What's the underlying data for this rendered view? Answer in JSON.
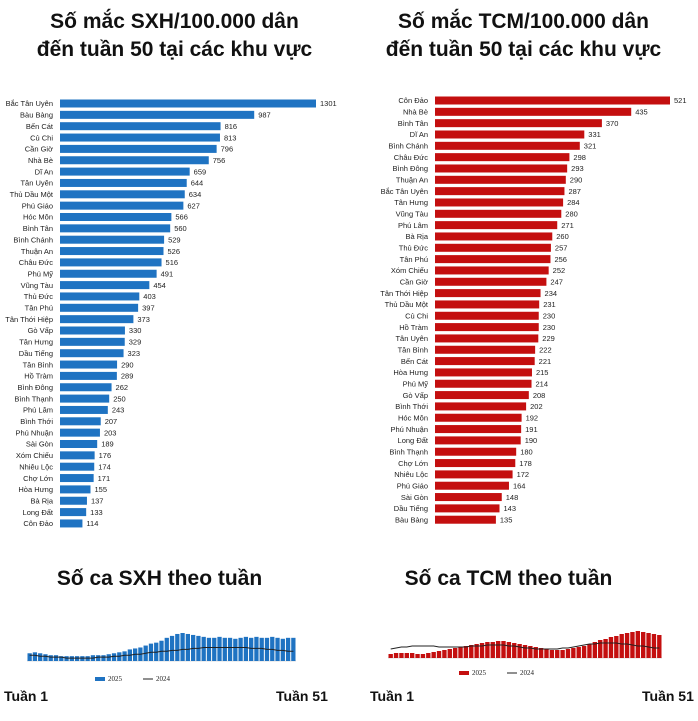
{
  "sxh": {
    "title_line1": "Số mắc SXH/100.000 dân",
    "title_line2": "đến tuần 50 tại các khu vực",
    "weekly_title": "Số ca SXH theo tuần",
    "legend_current": "2025",
    "legend_prev": "2024",
    "week_start": "Tuần 1",
    "week_end": "Tuần 51",
    "bar_color": "#1f73c2",
    "line_color": "#222222"
  },
  "tcm": {
    "title_line1": "Số mắc TCM/100.000 dân",
    "title_line2": "đến tuần 50 tại các khu vực",
    "weekly_title": "Số ca TCM theo tuần",
    "legend_current": "2025",
    "legend_prev": "2024",
    "week_start": "Tuần 1",
    "week_end": "Tuần 51",
    "bar_color": "#c40f0f",
    "line_color": "#222222"
  },
  "chart_data": [
    {
      "type": "bar",
      "orientation": "horizontal",
      "title": "Số mắc SXH/100.000 dân đến tuần 50 tại các khu vực",
      "categories": [
        "Bắc Tân Uyên",
        "Bàu Bàng",
        "Bến Cát",
        "Củ Chi",
        "Cần Giờ",
        "Nhà Bè",
        "Dĩ An",
        "Tân Uyên",
        "Thủ Dầu Một",
        "Phú Giáo",
        "Hóc Môn",
        "Bình Tân",
        "Bình Chánh",
        "Thuận An",
        "Châu Đức",
        "Phú Mỹ",
        "Vũng Tàu",
        "Thủ Đức",
        "Tân Phú",
        "Tân Thới Hiệp",
        "Gò Vấp",
        "Tân Hưng",
        "Dầu Tiếng",
        "Tân Bình",
        "Hồ Tràm",
        "Bình Đông",
        "Bình Thạnh",
        "Phú Lâm",
        "Bình Thới",
        "Phú Nhuận",
        "Sài Gòn",
        "Xóm Chiếu",
        "Nhiêu Lộc",
        "Chợ Lớn",
        "Hòa Hưng",
        "Bà Rịa",
        "Long Đất",
        "Côn Đảo"
      ],
      "values": [
        1301,
        987,
        816,
        813,
        796,
        756,
        659,
        644,
        634,
        627,
        566,
        560,
        529,
        526,
        516,
        491,
        454,
        403,
        397,
        373,
        330,
        329,
        323,
        290,
        289,
        262,
        250,
        243,
        207,
        203,
        189,
        176,
        174,
        171,
        155,
        137,
        133,
        114
      ],
      "xlim": [
        0,
        1301
      ],
      "color": "#1f73c2"
    },
    {
      "type": "bar",
      "orientation": "horizontal",
      "title": "Số mắc TCM/100.000 dân đến tuần 50 tại các khu vực",
      "categories": [
        "Côn Đảo",
        "Nhà Bè",
        "Bình Tân",
        "Dĩ An",
        "Bình Chánh",
        "Châu Đức",
        "Bình Đông",
        "Thuận An",
        "Bắc Tân Uyên",
        "Tân Hưng",
        "Vũng Tàu",
        "Phú Lâm",
        "Bà Rịa",
        "Thủ Đức",
        "Tân Phú",
        "Xóm Chiếu",
        "Cần Giờ",
        "Tân Thới Hiệp",
        "Thủ Dầu Một",
        "Củ Chi",
        "Hồ Tràm",
        "Tân Uyên",
        "Tân Bình",
        "Bến Cát",
        "Hòa Hưng",
        "Phú Mỹ",
        "Gò Vấp",
        "Bình Thới",
        "Hóc Môn",
        "Phú Nhuận",
        "Long Đất",
        "Bình Thạnh",
        "Chợ Lớn",
        "Nhiêu Lộc",
        "Phú Giáo",
        "Sài Gòn",
        "Dầu Tiếng",
        "Bàu Bàng"
      ],
      "values": [
        521,
        435,
        370,
        331,
        321,
        298,
        293,
        290,
        287,
        284,
        280,
        271,
        260,
        257,
        256,
        252,
        247,
        234,
        231,
        230,
        230,
        229,
        222,
        221,
        215,
        214,
        208,
        202,
        192,
        191,
        190,
        180,
        178,
        172,
        164,
        148,
        143,
        135
      ],
      "xlim": [
        0,
        521
      ],
      "color": "#c40f0f"
    },
    {
      "type": "bar",
      "title": "Số ca SXH theo tuần",
      "x_range": [
        "Tuần 1",
        "Tuần 51"
      ],
      "series": [
        {
          "name": "2025",
          "kind": "bar",
          "values": [
            8,
            9,
            8,
            7,
            6,
            6,
            5,
            5,
            5,
            5,
            5,
            5,
            6,
            6,
            6,
            7,
            8,
            9,
            10,
            12,
            13,
            14,
            16,
            18,
            19,
            21,
            24,
            26,
            28,
            29,
            28,
            27,
            26,
            25,
            24,
            24,
            25,
            24,
            24,
            23,
            24,
            25,
            24,
            25,
            24,
            24,
            25,
            24,
            23,
            24,
            24
          ]
        },
        {
          "name": "2024",
          "kind": "line",
          "values": [
            6,
            6,
            5,
            5,
            4,
            4,
            4,
            3,
            3,
            3,
            3,
            3,
            3,
            4,
            4,
            4,
            5,
            5,
            6,
            6,
            7,
            7,
            8,
            9,
            9,
            10,
            10,
            11,
            11,
            12,
            12,
            13,
            13,
            14,
            14,
            14,
            14,
            14,
            14,
            14,
            14,
            14,
            13,
            13,
            13,
            12,
            12,
            11,
            11,
            10,
            10
          ]
        }
      ]
    },
    {
      "type": "bar",
      "title": "Số ca TCM theo tuần",
      "x_range": [
        "Tuần 1",
        "Tuần 51"
      ],
      "series": [
        {
          "name": "2025",
          "kind": "bar",
          "values": [
            4,
            5,
            5,
            5,
            5,
            4,
            4,
            5,
            6,
            7,
            8,
            9,
            10,
            11,
            12,
            13,
            14,
            15,
            16,
            16,
            17,
            17,
            16,
            15,
            14,
            13,
            12,
            11,
            10,
            9,
            8,
            8,
            8,
            9,
            10,
            11,
            12,
            14,
            16,
            18,
            19,
            21,
            22,
            24,
            25,
            26,
            27,
            26,
            25,
            24,
            23
          ]
        },
        {
          "name": "2024",
          "kind": "line",
          "values": [
            9,
            10,
            11,
            11,
            12,
            12,
            12,
            12,
            12,
            11,
            11,
            11,
            11,
            11,
            11,
            12,
            12,
            12,
            13,
            13,
            13,
            13,
            12,
            12,
            11,
            10,
            10,
            9,
            9,
            9,
            9,
            9,
            10,
            10,
            11,
            12,
            13,
            14,
            14,
            15,
            15,
            15,
            15,
            14,
            14,
            13,
            12,
            12,
            11,
            10,
            10
          ]
        }
      ]
    }
  ]
}
